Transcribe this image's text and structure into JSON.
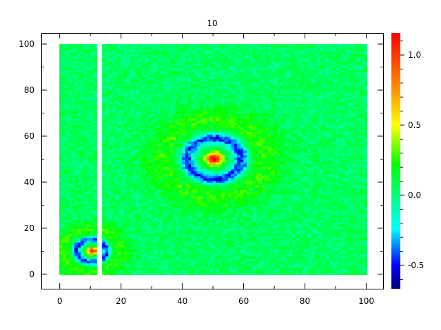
{
  "chart_data": {
    "type": "heatmap",
    "title": "10",
    "xlabel": "",
    "ylabel": "",
    "xlim": [
      -6,
      105.5
    ],
    "ylim": [
      -6.3,
      104.8
    ],
    "data_extent": {
      "x": [
        0,
        99
      ],
      "y": [
        0,
        99
      ]
    },
    "missing_columns_x": [
      12,
      13
    ],
    "xticks": [
      0,
      20,
      40,
      60,
      80,
      100
    ],
    "yticks": [
      0,
      20,
      40,
      60,
      80,
      100
    ],
    "xtick_labels": [
      "0",
      "20",
      "40",
      "60",
      "80",
      "100"
    ],
    "ytick_labels": [
      "0",
      "20",
      "40",
      "60",
      "80",
      "100"
    ],
    "colorbar": {
      "range": [
        -0.667,
        1.157
      ],
      "ticks": [
        -0.5,
        0.0,
        0.5,
        1.0
      ],
      "tick_labels": [
        "-0.5",
        "0.0",
        "0.5",
        "1.0"
      ],
      "colormap": "jet",
      "stops": [
        {
          "v": -0.667,
          "c": "#000080"
        },
        {
          "v": -0.5,
          "c": "#0000ff"
        },
        {
          "v": -0.24,
          "c": "#00ffff"
        },
        {
          "v": 0.22,
          "c": "#00ff00"
        },
        {
          "v": 0.5,
          "c": "#ffff00"
        },
        {
          "v": 0.8,
          "c": "#ff8000"
        },
        {
          "v": 1.157,
          "c": "#ff0000"
        }
      ]
    },
    "features": [
      {
        "kind": "peak with negative ring",
        "center": [
          50,
          50
        ],
        "peak_value": 1.0,
        "ring_value": -0.5,
        "ring_radius": 9
      },
      {
        "kind": "peak with negative ring",
        "center": [
          10,
          10
        ],
        "peak_value": 0.9,
        "ring_value": -0.5,
        "ring_radius": 5
      }
    ],
    "background_value": 0.05,
    "grid": false
  }
}
